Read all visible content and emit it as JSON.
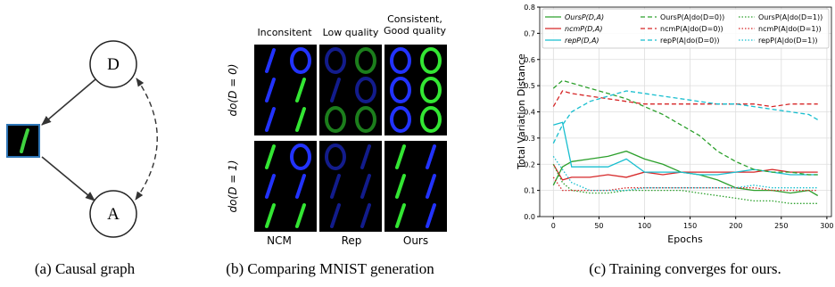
{
  "panels": {
    "a": {
      "caption": "(a) Causal graph",
      "nodes": [
        {
          "label": "D"
        },
        {
          "label": "A"
        }
      ]
    },
    "b": {
      "caption": "(b) Comparing MNIST generation",
      "column_headers": [
        "Inconsitent",
        "Low quality",
        "Consistent, Good quality"
      ],
      "row_labels": [
        "do(D = 0)",
        "do(D = 1)"
      ],
      "column_labels": [
        "NCM",
        "Rep",
        "Ours"
      ]
    },
    "c": {
      "caption": "(c) Training converges for ours."
    }
  },
  "chart_data": {
    "type": "line",
    "x": [
      0,
      10,
      20,
      40,
      60,
      80,
      100,
      120,
      140,
      160,
      180,
      200,
      220,
      240,
      260,
      280,
      290
    ],
    "xlabel": "Epochs",
    "ylabel": "Total Variation Distance",
    "xlim": [
      -15,
      305
    ],
    "ylim": [
      0,
      0.8
    ],
    "xticks": [
      0,
      50,
      100,
      150,
      200,
      250,
      300
    ],
    "yticks": [
      {
        "value": 0,
        "label": "0.0"
      },
      0.1,
      0.2,
      0.3,
      0.4,
      0.5,
      0.6,
      0.7,
      0.8
    ],
    "grid": true,
    "series": [
      {
        "name": "OursP(D,A)",
        "color": "#2ca02c",
        "dash": "solid",
        "values": [
          0.12,
          0.19,
          0.21,
          0.22,
          0.23,
          0.25,
          0.22,
          0.2,
          0.17,
          0.16,
          0.14,
          0.11,
          0.1,
          0.1,
          0.09,
          0.1,
          0.08
        ]
      },
      {
        "name": "ncmP(D,A)",
        "color": "#d62728",
        "dash": "solid",
        "values": [
          0.2,
          0.14,
          0.15,
          0.15,
          0.16,
          0.15,
          0.17,
          0.16,
          0.17,
          0.17,
          0.17,
          0.17,
          0.17,
          0.18,
          0.17,
          0.17,
          0.17
        ]
      },
      {
        "name": "repP(D,A)",
        "color": "#17becf",
        "dash": "solid",
        "values": [
          0.35,
          0.36,
          0.19,
          0.19,
          0.19,
          0.22,
          0.17,
          0.17,
          0.17,
          0.16,
          0.16,
          0.17,
          0.18,
          0.17,
          0.16,
          0.16,
          0.16
        ]
      },
      {
        "name": "OursP(A|do(D=0))",
        "color": "#2ca02c",
        "dash": "dashed",
        "values": [
          0.49,
          0.52,
          0.51,
          0.49,
          0.47,
          0.45,
          0.42,
          0.39,
          0.35,
          0.31,
          0.25,
          0.21,
          0.18,
          0.17,
          0.17,
          0.16,
          0.16
        ]
      },
      {
        "name": "ncmP(A|do(D=0))",
        "color": "#d62728",
        "dash": "dashed",
        "values": [
          0.42,
          0.48,
          0.47,
          0.46,
          0.45,
          0.44,
          0.43,
          0.43,
          0.43,
          0.43,
          0.43,
          0.43,
          0.43,
          0.42,
          0.43,
          0.43,
          0.43
        ]
      },
      {
        "name": "repP(A|do(D=0))",
        "color": "#17becf",
        "dash": "dashed",
        "values": [
          0.28,
          0.35,
          0.4,
          0.44,
          0.46,
          0.48,
          0.47,
          0.46,
          0.45,
          0.44,
          0.43,
          0.43,
          0.42,
          0.41,
          0.4,
          0.39,
          0.37
        ]
      },
      {
        "name": "OursP(A|do(D=1))",
        "color": "#2ca02c",
        "dash": "dotted",
        "values": [
          0.2,
          0.13,
          0.1,
          0.09,
          0.09,
          0.1,
          0.1,
          0.1,
          0.1,
          0.09,
          0.08,
          0.07,
          0.06,
          0.06,
          0.05,
          0.05,
          0.05
        ]
      },
      {
        "name": "ncmP(A|do(D=1))",
        "color": "#d62728",
        "dash": "dotted",
        "values": [
          0.15,
          0.1,
          0.1,
          0.1,
          0.1,
          0.11,
          0.11,
          0.11,
          0.11,
          0.11,
          0.11,
          0.11,
          0.11,
          0.1,
          0.1,
          0.1,
          0.1
        ]
      },
      {
        "name": "repP(A|do(D=1))",
        "color": "#17becf",
        "dash": "dotted",
        "values": [
          0.23,
          0.18,
          0.13,
          0.1,
          0.1,
          0.1,
          0.11,
          0.11,
          0.11,
          0.11,
          0.11,
          0.11,
          0.12,
          0.11,
          0.11,
          0.11,
          0.11
        ]
      }
    ]
  }
}
